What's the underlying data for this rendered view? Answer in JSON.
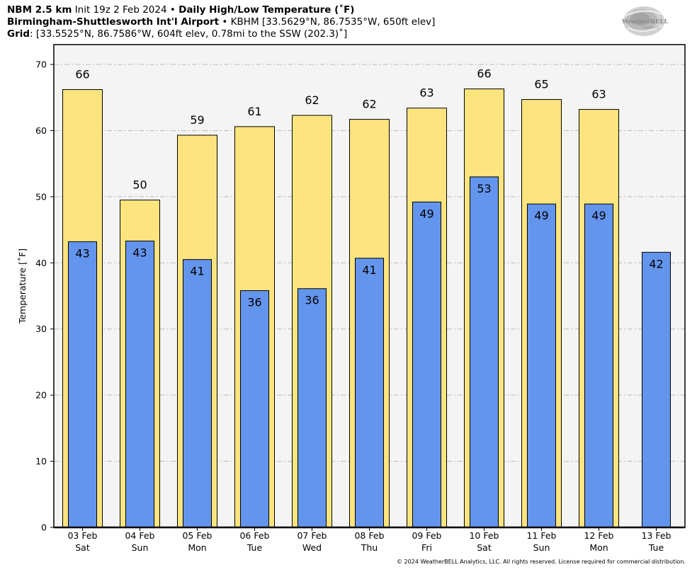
{
  "header": {
    "line1_bold": "NBM 2.5 km",
    "line1_init": "Init 19z 2 Feb 2024",
    "line1_sep": "•",
    "line1_title": "Daily High/Low Temperature (˚F)",
    "line2_bold": "Birmingham-Shuttlesworth Int'l Airport",
    "line2_sep": "•",
    "line2_rest": "KBHM [33.5629°N, 86.7535°W, 650ft elev]",
    "line3_bold": "Grid",
    "line3_rest": ": [33.5525°N, 86.7586°W, 604ft elev, 0.78mi to the SSW (202.3)˚]"
  },
  "logo": {
    "text": "WeatherBELL",
    "sub": "Analytics LLC"
  },
  "footer": "© 2024 WeatherBELL Analytics, LLC. All rights reserved. License required for commercial distribution.",
  "colors": {
    "high": "#fde47f",
    "low": "#6495ed",
    "plot_bg": "#f4f4f4",
    "grid": "#bbbbbb"
  },
  "chart_data": {
    "type": "bar",
    "ylabel": "Temperature [˚F]",
    "ylim": [
      0,
      73
    ],
    "yticks": [
      0,
      10,
      20,
      30,
      40,
      50,
      60,
      70
    ],
    "grid": true,
    "categories": [
      [
        "03 Feb",
        "Sat"
      ],
      [
        "04 Feb",
        "Sun"
      ],
      [
        "05 Feb",
        "Mon"
      ],
      [
        "06 Feb",
        "Tue"
      ],
      [
        "07 Feb",
        "Wed"
      ],
      [
        "08 Feb",
        "Thu"
      ],
      [
        "09 Feb",
        "Fri"
      ],
      [
        "10 Feb",
        "Sat"
      ],
      [
        "11 Feb",
        "Sun"
      ],
      [
        "12 Feb",
        "Mon"
      ],
      [
        "13 Feb",
        "Tue"
      ]
    ],
    "series": [
      {
        "key": "high",
        "values": [
          66.2,
          49.5,
          59.3,
          60.6,
          62.3,
          61.7,
          63.4,
          66.3,
          64.7,
          63.2,
          null
        ],
        "labels": [
          "66",
          "50",
          "59",
          "61",
          "62",
          "62",
          "63",
          "66",
          "65",
          "63",
          ""
        ]
      },
      {
        "key": "low",
        "values": [
          43.2,
          43.3,
          40.5,
          35.8,
          36.1,
          40.7,
          49.2,
          53.0,
          48.9,
          48.9,
          41.6
        ],
        "labels": [
          "43",
          "43",
          "41",
          "36",
          "36",
          "41",
          "49",
          "53",
          "49",
          "49",
          "42"
        ]
      }
    ]
  }
}
